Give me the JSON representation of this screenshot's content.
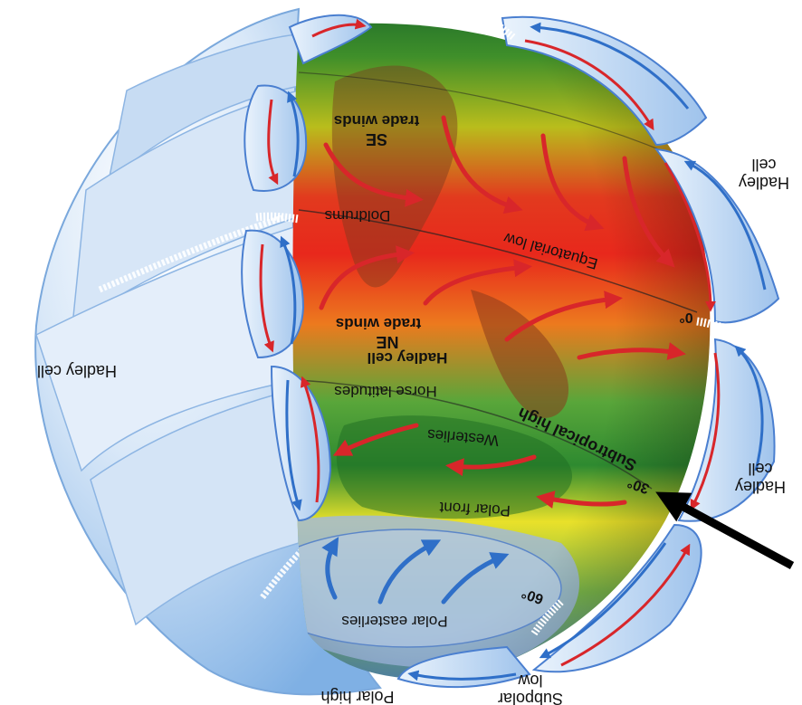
{
  "labels": {
    "hadley_cell_left": "Hadley cell",
    "hadley_cell_top_right_1": "Hadley",
    "hadley_cell_top_right_2": "cell",
    "hadley_cell_mid_right_1": "Hadley",
    "hadley_cell_mid_right_2": "cell",
    "polar_high": "Polar high",
    "subpolar_low_1": "Subpolar",
    "subpolar_low_2": "low",
    "se_trade_winds_1": "SE",
    "se_trade_winds_2": "trade winds",
    "doldrums": "Doldrums",
    "equatorial_low": "Equatorial low",
    "ne_trade_winds_1": "NE",
    "ne_trade_winds_2": "trade winds",
    "hadley_cell_center": "Hadley cell",
    "horse_latitudes": "Horse latitudes",
    "subtropical_high": "Subtropical high",
    "westerlies": "Westerlies",
    "polar_front": "Polar front",
    "polar_easterlies": "Polar easterlies",
    "lat_0": "0°",
    "lat_30": "30°",
    "lat_60": "60°"
  },
  "colors": {
    "cell_blue": "#6fa3dc",
    "cell_light": "#cfe2f7",
    "wind_red": "#d8262a",
    "wind_blue": "#2f6fc8",
    "pointer": "#000000"
  }
}
